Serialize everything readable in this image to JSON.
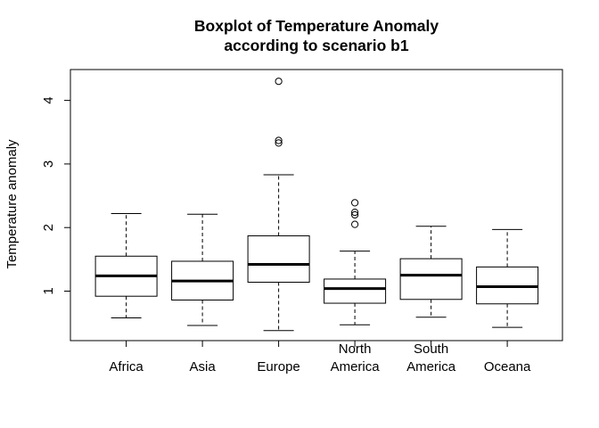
{
  "chart_data": {
    "type": "boxplot",
    "title": [
      "Boxplot of Temperature Anomaly",
      "according to scenario b1"
    ],
    "xlabel": "",
    "ylabel": "Temperature anomaly",
    "ylim": [
      0.2,
      4.5
    ],
    "yticks": [
      1,
      2,
      3,
      4
    ],
    "grid": false,
    "categories": [
      [
        "Africa"
      ],
      [
        "Asia"
      ],
      [
        "Europe"
      ],
      [
        "North",
        "America"
      ],
      [
        "South",
        "America"
      ],
      [
        "Oceana"
      ]
    ],
    "boxes": [
      {
        "whisker_low": 0.58,
        "q1": 0.92,
        "median": 1.24,
        "q3": 1.55,
        "whisker_high": 2.22,
        "outliers": []
      },
      {
        "whisker_low": 0.46,
        "q1": 0.86,
        "median": 1.16,
        "q3": 1.47,
        "whisker_high": 2.21,
        "outliers": []
      },
      {
        "whisker_low": 0.38,
        "q1": 1.14,
        "median": 1.42,
        "q3": 1.87,
        "whisker_high": 2.83,
        "outliers": [
          3.33,
          3.37,
          4.3
        ]
      },
      {
        "whisker_low": 0.47,
        "q1": 0.81,
        "median": 1.04,
        "q3": 1.19,
        "whisker_high": 1.63,
        "outliers": [
          2.05,
          2.2,
          2.24,
          2.39
        ]
      },
      {
        "whisker_low": 0.59,
        "q1": 0.87,
        "median": 1.25,
        "q3": 1.51,
        "whisker_high": 2.02,
        "outliers": []
      },
      {
        "whisker_low": 0.43,
        "q1": 0.8,
        "median": 1.07,
        "q3": 1.38,
        "whisker_high": 1.97,
        "outliers": []
      }
    ]
  }
}
